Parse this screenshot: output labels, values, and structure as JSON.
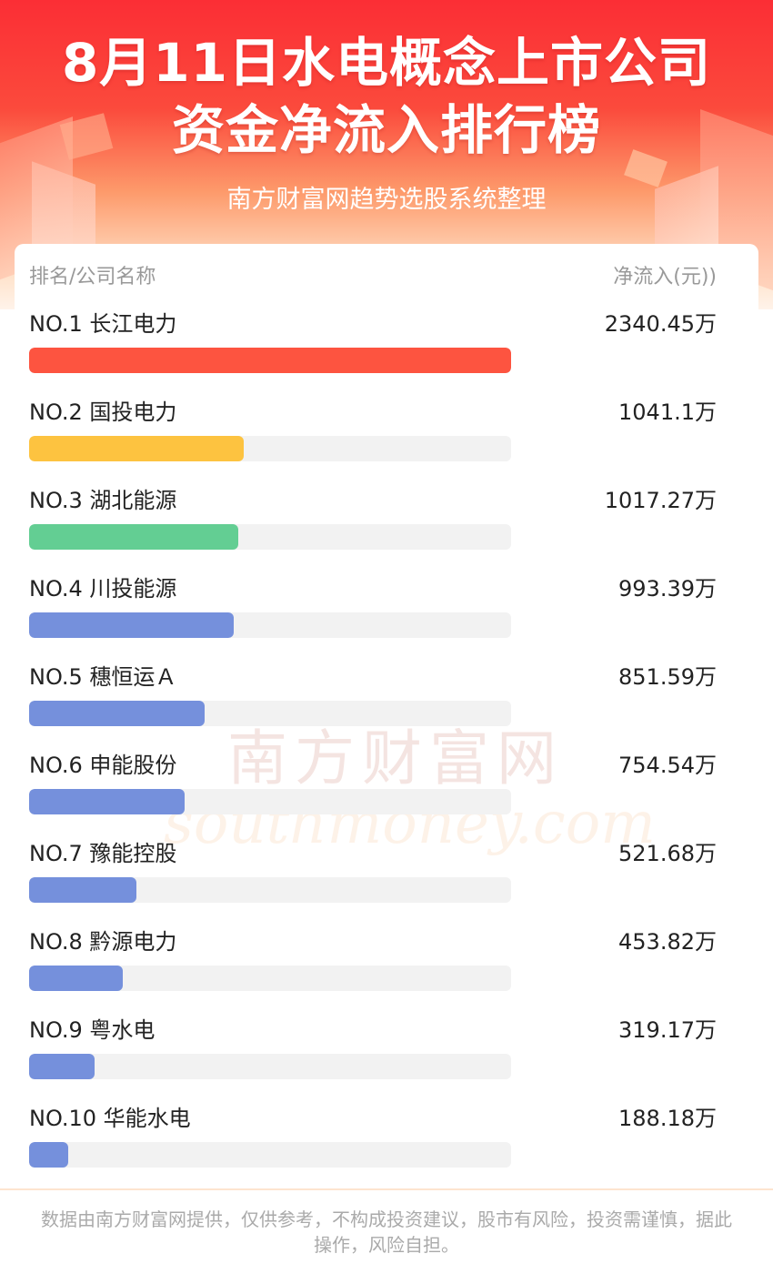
{
  "header": {
    "title_line1": "8月11日水电概念上市公司",
    "title_line2": "资金净流入排行榜",
    "subtitle": "南方财富网趋势选股系统整理"
  },
  "table": {
    "col_left": "排名/公司名称",
    "col_right": "净流入(元))"
  },
  "watermark": {
    "cn": "南方财富网",
    "en": "southmoney.com"
  },
  "footer": "数据由南方财富网提供，仅供参考，不构成投资建议，股市有风险，投资需谨慎，据此操作，风险自担。",
  "colors": {
    "rank1": "#fd5440",
    "rank2": "#fdc340",
    "rank3": "#63ce93",
    "others": "#7590dc",
    "track": "#f2f2f2"
  },
  "chart_data": {
    "type": "bar",
    "orientation": "horizontal",
    "unit": "万",
    "xlim": [
      0,
      2340.45
    ],
    "rows": [
      {
        "label": "NO.1 长江电力",
        "value": 2340.45,
        "display": "2340.45万"
      },
      {
        "label": "NO.2 国投电力",
        "value": 1041.1,
        "display": "1041.1万"
      },
      {
        "label": "NO.3 湖北能源",
        "value": 1017.27,
        "display": "1017.27万"
      },
      {
        "label": "NO.4 川投能源",
        "value": 993.39,
        "display": "993.39万"
      },
      {
        "label": "NO.5 穗恒运Ａ",
        "value": 851.59,
        "display": "851.59万"
      },
      {
        "label": "NO.6 申能股份",
        "value": 754.54,
        "display": "754.54万"
      },
      {
        "label": "NO.7 豫能控股",
        "value": 521.68,
        "display": "521.68万"
      },
      {
        "label": "NO.8 黔源电力",
        "value": 453.82,
        "display": "453.82万"
      },
      {
        "label": "NO.9 粤水电",
        "value": 319.17,
        "display": "319.17万"
      },
      {
        "label": "NO.10 华能水电",
        "value": 188.18,
        "display": "188.18万"
      }
    ]
  }
}
